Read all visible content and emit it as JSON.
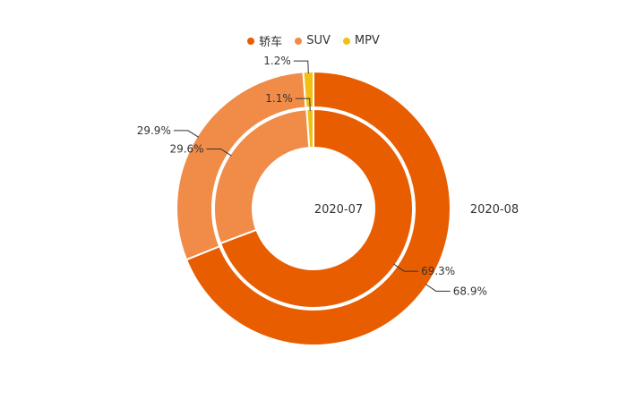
{
  "chart_data": {
    "type": "pie",
    "subtype": "nested-donut",
    "categories": [
      "轿车",
      "SUV",
      "MPV"
    ],
    "colors": [
      "#E85D00",
      "#F08C48",
      "#F2C012"
    ],
    "series": [
      {
        "name": "2020-07",
        "ring": "inner",
        "values": [
          69.3,
          29.6,
          1.1
        ],
        "labels": [
          "69.3%",
          "29.6%",
          "1.1%"
        ]
      },
      {
        "name": "2020-08",
        "ring": "outer",
        "values": [
          68.9,
          29.9,
          1.2
        ],
        "labels": [
          "68.9%",
          "29.9%",
          "1.2%"
        ]
      }
    ],
    "legend_position": "top-center"
  },
  "legend": {
    "items": [
      "轿车",
      "SUV",
      "MPV"
    ]
  },
  "ring_labels": {
    "inner": "2020-07",
    "outer": "2020-08"
  }
}
